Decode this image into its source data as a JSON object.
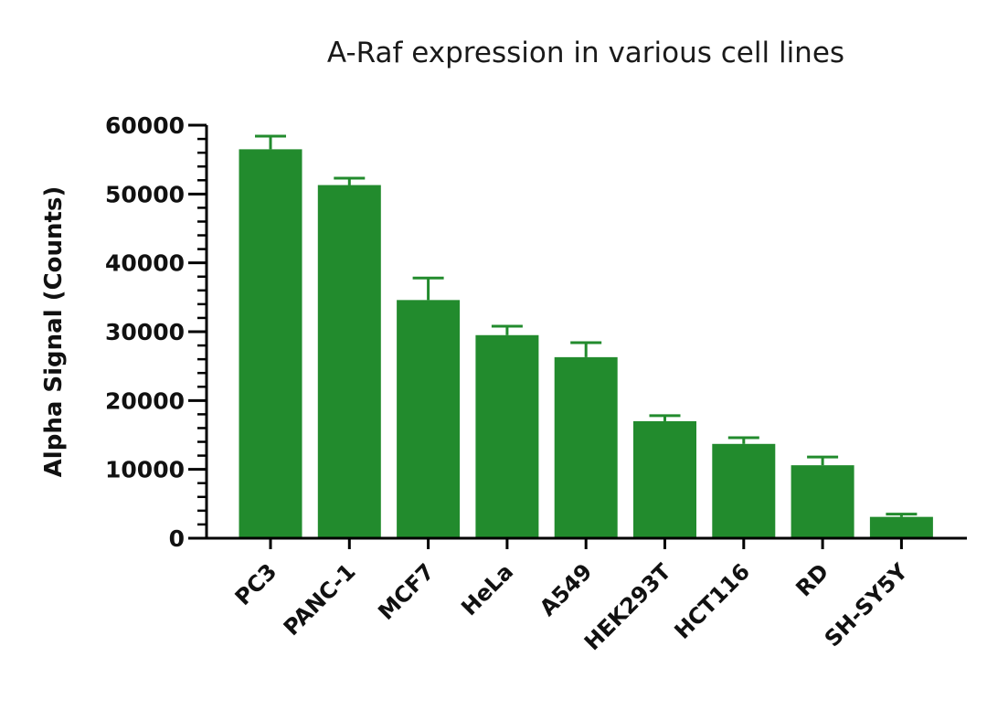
{
  "chart_data": {
    "type": "bar",
    "title": "A-Raf expression in various cell lines",
    "ylabel": "Alpha Signal (Counts)",
    "xlabel": "",
    "ylim": [
      0,
      60000
    ],
    "yticks": [
      "0",
      "10000",
      "20000",
      "30000",
      "40000",
      "50000",
      "60000"
    ],
    "categories": [
      "PC3",
      "PANC-1",
      "MCF7",
      "HeLa",
      "A549",
      "HEK293T",
      "HCT116",
      "RD",
      "SH-SY5Y"
    ],
    "values": [
      56500,
      51300,
      34600,
      29500,
      26300,
      17000,
      13700,
      10600,
      3100
    ],
    "errors": [
      1900,
      1000,
      3200,
      1300,
      2100,
      800,
      900,
      1200,
      400
    ],
    "bar_color": "#228b2d",
    "axis_color": "#000000",
    "grid": false
  }
}
